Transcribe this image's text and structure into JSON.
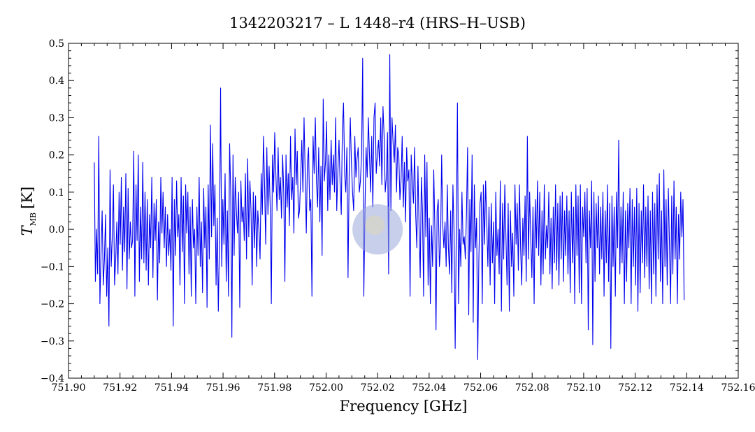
{
  "chart_data": {
    "type": "line",
    "title": "1342203217 – L 1448–r4 (HRS–H–USB)",
    "xlabel": "Frequency [GHz]",
    "ylabel_main": "T",
    "ylabel_sub": "MB",
    "ylabel_unit": "[K]",
    "xlim": [
      751.9,
      752.16
    ],
    "ylim": [
      -0.4,
      0.5
    ],
    "xticks": [
      "751.90",
      "751.92",
      "751.94",
      "751.96",
      "751.98",
      "752.00",
      "752.02",
      "752.04",
      "752.06",
      "752.08",
      "752.10",
      "752.12",
      "752.14",
      "752.16"
    ],
    "yticks": [
      "−0.4",
      "−0.3",
      "−0.2",
      "−0.1",
      "0.0",
      "0.1",
      "0.2",
      "0.3",
      "0.4",
      "0.5"
    ],
    "grid": false,
    "line_color": "#0000ee",
    "marker": {
      "x": 752.02,
      "y": 0.0,
      "color": "#9aa8d8"
    },
    "series": [
      {
        "x_start": 751.91,
        "x_end": 752.139,
        "values": [
          0.18,
          -0.14,
          0.0,
          -0.12,
          0.25,
          -0.2,
          -0.06,
          0.05,
          -0.15,
          -0.08,
          0.04,
          -0.18,
          -0.05,
          -0.26,
          0.16,
          -0.1,
          -0.02,
          0.12,
          -0.15,
          -0.08,
          0.02,
          -0.12,
          0.1,
          -0.04,
          0.14,
          -0.11,
          0.06,
          -0.06,
          0.15,
          -0.16,
          0.11,
          -0.08,
          0.02,
          -0.05,
          -0.03,
          0.21,
          -0.18,
          0.12,
          -0.03,
          0.2,
          -0.14,
          0.06,
          -0.08,
          0.18,
          -0.09,
          0.1,
          -0.11,
          0.08,
          -0.15,
          0.04,
          -0.05,
          0.14,
          -0.13,
          0.07,
          -0.03,
          0.08,
          -0.19,
          0.02,
          -0.09,
          0.14,
          -0.01,
          0.1,
          -0.05,
          0.06,
          -0.1,
          0.04,
          -0.07,
          0.0,
          -0.11,
          0.14,
          -0.26,
          0.08,
          -0.07,
          0.13,
          -0.02,
          0.04,
          -0.15,
          0.14,
          -0.06,
          0.09,
          -0.2,
          0.12,
          -0.01,
          0.1,
          -0.12,
          0.06,
          -0.18,
          0.08,
          -0.05,
          0.0,
          -0.2,
          0.06,
          -0.07,
          0.14,
          -0.1,
          0.02,
          -0.17,
          0.11,
          -0.05,
          0.06,
          -0.21,
          0.12,
          -0.08,
          0.28,
          -0.02,
          0.23,
          0.01,
          0.12,
          -0.15,
          0.03,
          -0.22,
          -0.03,
          0.38,
          -0.1,
          0.08,
          -0.04,
          0.15,
          -0.14,
          0.05,
          -0.18,
          0.23,
          0.1,
          -0.29,
          0.2,
          -0.07,
          0.14,
          0.05,
          -0.01,
          0.1,
          -0.21,
          0.13,
          0.02,
          0.06,
          -0.03,
          0.15,
          -0.08,
          0.19,
          -0.02,
          0.13,
          0.05,
          -0.15,
          0.1,
          -0.05,
          0.09,
          -0.1,
          0.05,
          0.0,
          -0.08,
          0.15,
          0.04,
          0.25,
          0.12,
          -0.04,
          0.22,
          0.04,
          0.17,
          0.06,
          -0.2,
          0.2,
          0.1,
          0.26,
          0.15,
          0.05,
          0.22,
          0.08,
          0.14,
          0.03,
          0.2,
          0.1,
          -0.14,
          0.2,
          0.06,
          0.15,
          0.01,
          0.25,
          0.08,
          0.14,
          -0.01,
          0.27,
          0.12,
          0.21,
          0.03,
          0.05,
          0.14,
          0.24,
          0.1,
          0.3,
          0.15,
          -0.01,
          0.18,
          0.22,
          0.05,
          0.08,
          -0.18,
          0.25,
          0.15,
          0.3,
          0.13,
          0.06,
          0.22,
          0.02,
          0.17,
          -0.07,
          0.35,
          0.13,
          0.18,
          0.29,
          0.05,
          0.2,
          0.08,
          0.24,
          0.12,
          0.2,
          0.1,
          0.3,
          0.05,
          0.16,
          0.24,
          0.12,
          0.04,
          0.27,
          0.34,
          0.15,
          0.1,
          0.22,
          -0.13,
          0.15,
          0.3,
          0.18,
          0.1,
          0.05,
          0.25,
          0.14,
          0.19,
          0.22,
          0.1,
          0.13,
          0.2,
          0.46,
          -0.18,
          0.05,
          0.22,
          0.14,
          0.3,
          0.2,
          0.1,
          0.25,
          0.06,
          0.3,
          0.34,
          0.15,
          0.2,
          0.24,
          0.17,
          0.3,
          0.12,
          0.33,
          0.25,
          0.1,
          0.14,
          0.26,
          -0.12,
          0.47,
          0.05,
          0.3,
          0.23,
          0.18,
          0.28,
          0.1,
          0.22,
          0.2,
          0.08,
          0.13,
          0.25,
          0.06,
          0.18,
          0.02,
          0.22,
          0.13,
          0.16,
          -0.18,
          0.2,
          0.13,
          0.07,
          0.22,
          0.04,
          -0.05,
          0.17,
          0.0,
          -0.13,
          0.14,
          0.05,
          -0.18,
          0.2,
          -0.02,
          0.18,
          -0.15,
          0.03,
          -0.2,
          0.01,
          -0.1,
          0.16,
          0.0,
          -0.27,
          0.05,
          0.08,
          -0.1,
          -0.05,
          0.2,
          0.01,
          -0.05,
          0.02,
          -0.1,
          0.12,
          -0.05,
          -0.12,
          0.05,
          -0.17,
          0.12,
          -0.01,
          -0.32,
          0.0,
          0.34,
          -0.2,
          0.0,
          -0.1,
          0.1,
          -0.04,
          -0.02,
          -0.08,
          0.04,
          0.22,
          -0.23,
          0.08,
          -0.06,
          0.2,
          -0.25,
          0.12,
          -0.05,
          0.03,
          -0.35,
          -0.08,
          0.07,
          0.1,
          -0.2,
          0.12,
          -0.04,
          0.13,
          0.02,
          -0.1,
          0.06,
          -0.15,
          0.07,
          -0.09,
          0.02,
          -0.2,
          0.1,
          -0.07,
          0.0,
          -0.12,
          0.13,
          -0.22,
          0.07,
          -0.08,
          0.12,
          -0.02,
          -0.15,
          0.07,
          -0.22,
          0.05,
          -0.1,
          -0.01,
          -0.18,
          0.12,
          -0.04,
          0.07,
          -0.11,
          0.12,
          -0.05,
          -0.15,
          0.03,
          -0.07,
          0.09,
          -0.14,
          0.25,
          -0.08,
          0.1,
          -0.02,
          -0.13,
          0.06,
          -0.2,
          0.08,
          -0.05,
          0.13,
          -0.07,
          0.1,
          -0.15,
          0.05,
          -0.12,
          0.12,
          -0.08,
          0.01,
          -0.05,
          0.1,
          -0.12,
          0.03,
          -0.16,
          0.06,
          -0.09,
          0.12,
          -0.11,
          0.07,
          -0.15,
          0.09,
          -0.08,
          0.1,
          -0.14,
          0.05,
          -0.07,
          0.09,
          -0.12,
          0.05,
          -0.17,
          0.1,
          -0.09,
          0.06,
          -0.2,
          0.12,
          -0.07,
          0.09,
          -0.17,
          0.12,
          -0.2,
          0.06,
          -0.02,
          0.1,
          -0.09,
          0.11,
          -0.27,
          0.05,
          -0.05,
          0.13,
          -0.31,
          0.1,
          -0.14,
          0.07,
          -0.05,
          0.09,
          -0.12,
          0.06,
          -0.08,
          0.1,
          -0.18,
          0.05,
          -0.09,
          0.12,
          -0.14,
          0.07,
          -0.32,
          0.09,
          -0.1,
          0.06,
          -0.18,
          0.1,
          -0.05,
          0.24,
          -0.12,
          0.06,
          -0.09,
          0.1,
          -0.2,
          0.05,
          -0.14,
          0.07,
          -0.05,
          0.11,
          -0.2,
          0.08,
          -0.1,
          0.06,
          -0.15,
          0.11,
          -0.22,
          0.07,
          -0.17,
          0.05,
          -0.09,
          0.12,
          -0.13,
          0.06,
          -0.1,
          0.09,
          -0.16,
          0.05,
          -0.2,
          0.1,
          -0.12,
          0.07,
          -0.18,
          0.12,
          -0.08,
          0.15,
          -0.14,
          0.05,
          -0.2,
          0.16,
          -0.1,
          0.08,
          -0.15,
          0.11,
          -0.04,
          -0.2,
          0.09,
          -0.12,
          0.13,
          -0.08,
          0.06,
          -0.2,
          0.04,
          -0.08,
          0.1,
          -0.02,
          0.08,
          -0.19
        ]
      }
    ]
  }
}
